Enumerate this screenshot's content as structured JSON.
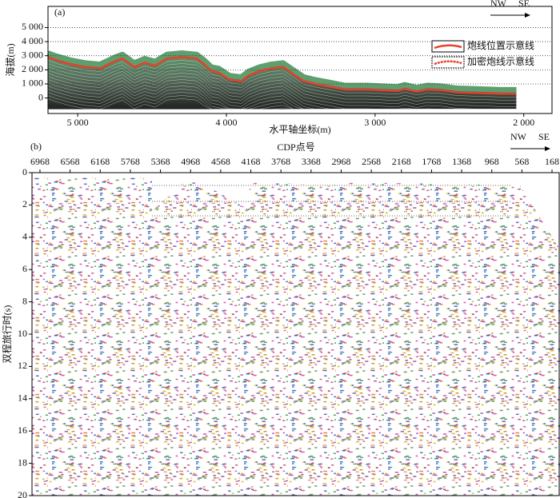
{
  "chart_data": [
    {
      "type": "line",
      "panel_label": "(a)",
      "direction": [
        "NW",
        "SE"
      ],
      "xlabel": "水平轴坐标(m)",
      "ylabel": "海拔(m)",
      "xlim": [
        5200,
        1810
      ],
      "ylim": [
        -1100,
        6500
      ],
      "xticks": [
        {
          "value": 5000,
          "label": "5 000"
        },
        {
          "value": 4000,
          "label": "4 000"
        },
        {
          "value": 3000,
          "label": "3 000"
        },
        {
          "value": 2000,
          "label": "2 000"
        }
      ],
      "yticks": [
        0,
        {
          "value": 1000,
          "label": "1 000"
        },
        {
          "value": 2000,
          "label": "2 000"
        },
        {
          "value": 3000,
          "label": "3 000"
        },
        {
          "value": 4000,
          "label": "4 000"
        },
        {
          "value": 5000,
          "label": "5 000"
        }
      ],
      "grid": true,
      "legend": [
        {
          "name": "炮线位置示意线",
          "color": "#e8402a"
        },
        {
          "name": "加密炮线示意线",
          "color": "#e8402a"
        }
      ],
      "terrain_color": "#5f9e6e",
      "series": [
        {
          "color": "#e8402a",
          "x": [
            5200,
            5150,
            5050,
            4950,
            4850,
            4750,
            4700,
            4620,
            4550,
            4480,
            4400,
            4300,
            4200,
            4150,
            4100,
            4050,
            3980,
            3900,
            3850,
            3780,
            3700,
            3620,
            3550,
            3480,
            3400,
            3300,
            3200,
            3050,
            2950,
            2850,
            2800,
            2720,
            2650,
            2550,
            2450,
            2300,
            2150,
            2050
          ],
          "values": [
            2900,
            2700,
            2400,
            2200,
            2100,
            2600,
            2800,
            2200,
            2500,
            2300,
            2800,
            2900,
            2800,
            2400,
            1900,
            1800,
            1300,
            1200,
            1600,
            1900,
            2100,
            2200,
            1700,
            1200,
            1000,
            800,
            600,
            600,
            550,
            500,
            650,
            450,
            600,
            550,
            400,
            350,
            300,
            300
          ]
        }
      ]
    },
    {
      "type": "seismic",
      "panel_label": "(b)",
      "direction": [
        "NW",
        "SE"
      ],
      "xlabel": "CDP点号",
      "ylabel": "双程旅行时(s)",
      "xlim": [
        7074,
        62
      ],
      "ylim": [
        20,
        0
      ],
      "xticks": [
        6968,
        6568,
        6168,
        5768,
        5368,
        4968,
        4568,
        4168,
        3768,
        3368,
        2968,
        2568,
        2168,
        1768,
        1368,
        968,
        568,
        168
      ],
      "yticks": [
        0,
        2,
        4,
        6,
        8,
        10,
        12,
        14,
        16,
        18,
        20
      ]
    }
  ]
}
